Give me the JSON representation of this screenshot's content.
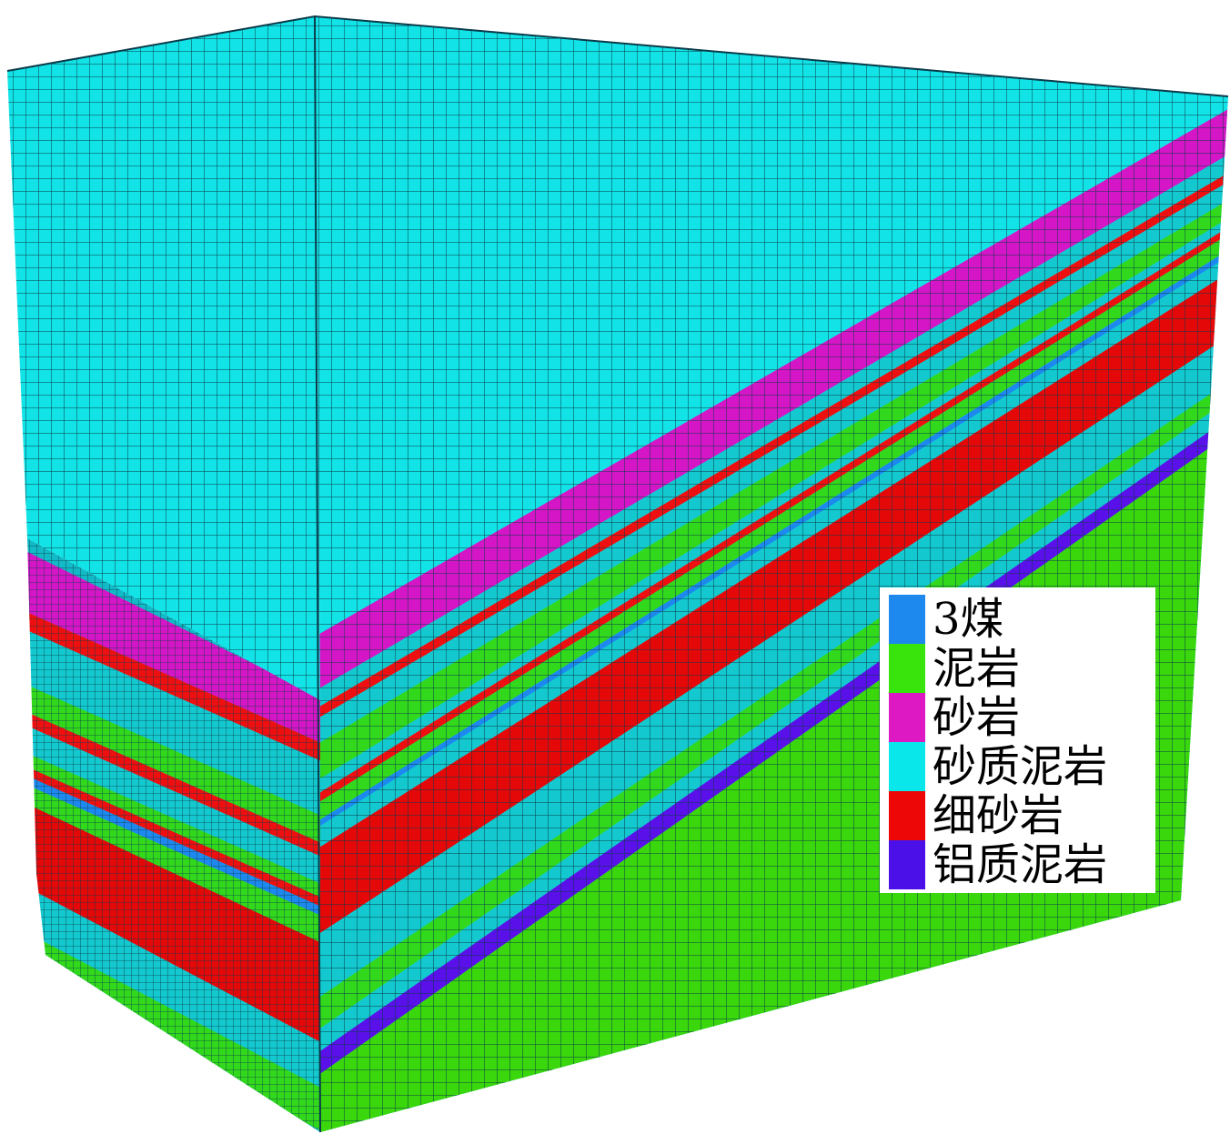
{
  "legend": {
    "items": [
      {
        "label": "3煤",
        "color": "#1d88ee"
      },
      {
        "label": "泥岩",
        "color": "#39e40c"
      },
      {
        "label": "砂岩",
        "color": "#dd19c4"
      },
      {
        "label": "砂质泥岩",
        "color": "#0ae7ea"
      },
      {
        "label": "细砂岩",
        "color": "#ee0707"
      },
      {
        "label": "铝质泥岩",
        "color": "#4b10e8"
      }
    ]
  },
  "model": {
    "top_color": "#10eaea",
    "left_face_layers_top_to_bottom": [
      "砂质泥岩",
      "砂岩",
      "细砂岩",
      "砂质泥岩",
      "泥岩",
      "细砂岩",
      "砂质泥岩",
      "泥岩",
      "细砂岩",
      "3煤",
      "泥岩",
      "细砂岩",
      "砂质泥岩",
      "泥岩"
    ]
  }
}
